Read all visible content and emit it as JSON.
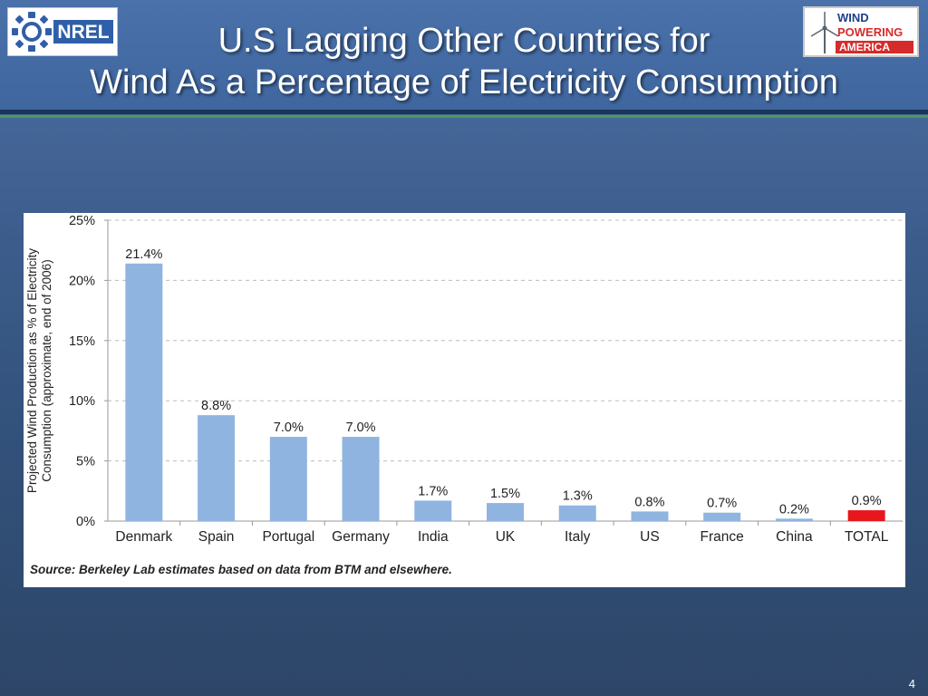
{
  "slide": {
    "title_line1": "U.S Lagging Other Countries for",
    "title_line2": "Wind As a Percentage of Electricity Consumption",
    "page_number": "4",
    "logo_left_text": "NREL",
    "logo_right_lines": [
      "WIND",
      "POWERING",
      "AMERICA"
    ]
  },
  "colors": {
    "bar_default": "#8fb4e0",
    "bar_highlight": "#e8171e",
    "grid": "#bdbdbd",
    "nrel_blue": "#2f5fa8"
  },
  "chart_data": {
    "type": "bar",
    "title": "",
    "ylabel": "Projected Wind Production as % of Electricity Consumption (approximate, end of 2006)",
    "xlabel": "",
    "categories": [
      "Denmark",
      "Spain",
      "Portugal",
      "Germany",
      "India",
      "UK",
      "Italy",
      "US",
      "France",
      "China",
      "TOTAL"
    ],
    "values": [
      21.4,
      8.8,
      7.0,
      7.0,
      1.7,
      1.5,
      1.3,
      0.8,
      0.7,
      0.2,
      0.9
    ],
    "value_labels": [
      "21.4%",
      "8.8%",
      "7.0%",
      "7.0%",
      "1.7%",
      "1.5%",
      "1.3%",
      "0.8%",
      "0.7%",
      "0.2%",
      "0.9%"
    ],
    "highlight_category": "TOTAL",
    "ylim": [
      0,
      25
    ],
    "yticks": [
      0,
      5,
      10,
      15,
      20,
      25
    ],
    "ytick_labels": [
      "0%",
      "5%",
      "10%",
      "15%",
      "20%",
      "25%"
    ],
    "grid": true,
    "grid_style": "dashed",
    "source": "Source: Berkeley Lab estimates based on data from BTM and elsewhere."
  }
}
